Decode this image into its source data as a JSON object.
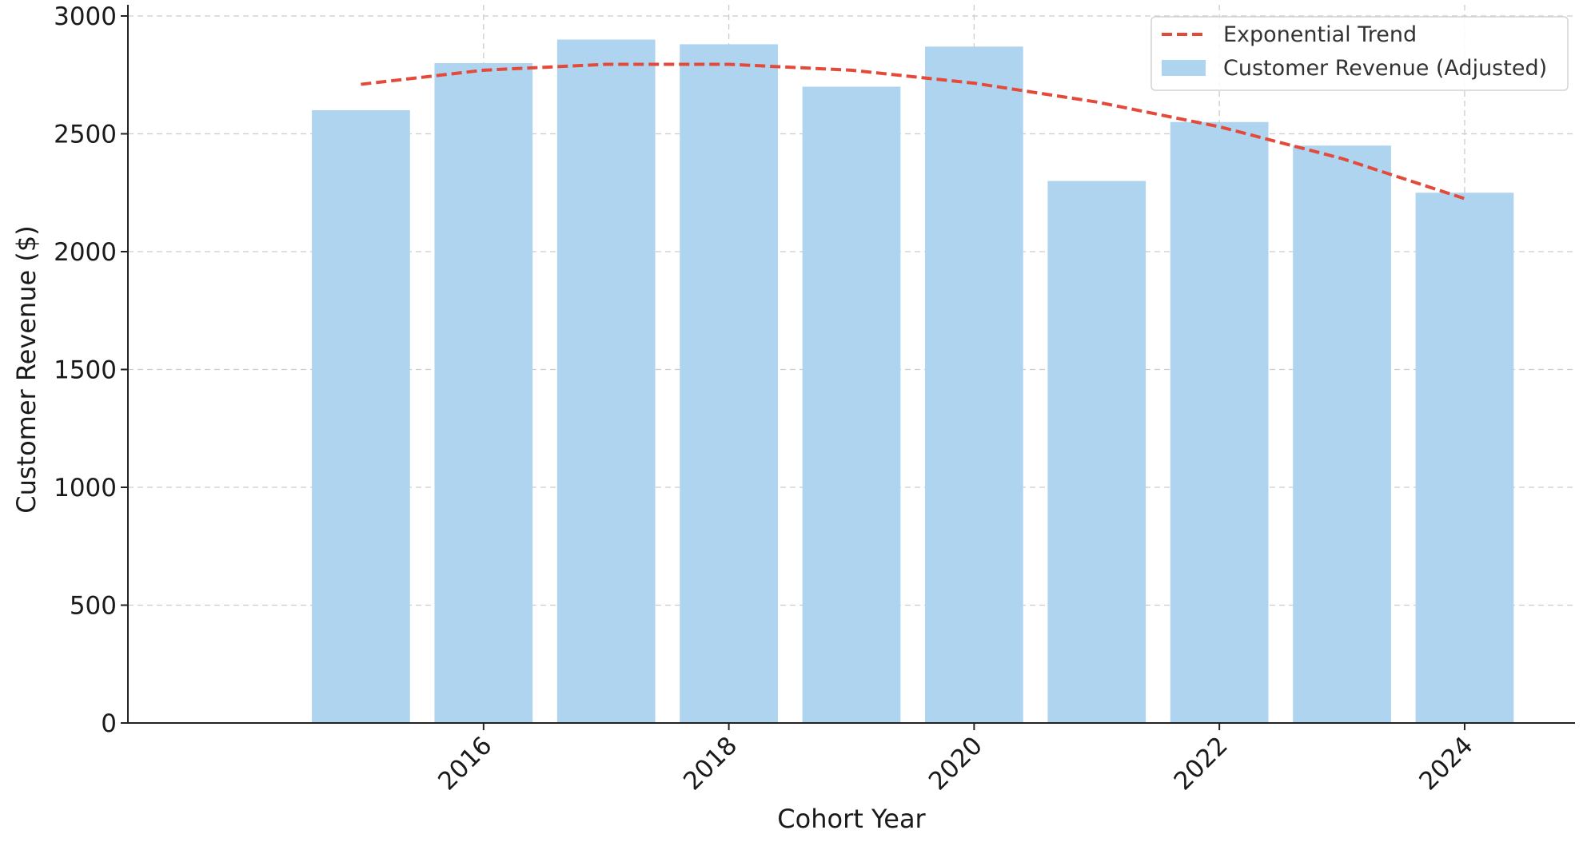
{
  "chart_data": {
    "type": "bar",
    "title": "",
    "xlabel": "Cohort Year",
    "ylabel": "Customer Revenue ($)",
    "x": [
      2015,
      2016,
      2017,
      2018,
      2019,
      2020,
      2021,
      2022,
      2023,
      2024
    ],
    "xlim": [
      2013.1,
      2024.9
    ],
    "ylim": [
      0,
      3000
    ],
    "x_ticks": [
      "2016",
      "2018",
      "2020",
      "2022",
      "2024"
    ],
    "y_ticks": [
      "0",
      "500",
      "1000",
      "1500",
      "2000",
      "2500",
      "3000"
    ],
    "grid": true,
    "legend_position": "top-right",
    "series": [
      {
        "name": "Customer Revenue (Adjusted)",
        "type": "bar",
        "color": "#aed4ef",
        "values": [
          2600,
          2800,
          2900,
          2880,
          2700,
          2870,
          2300,
          2550,
          2450,
          2250
        ]
      },
      {
        "name": "Exponential Trend",
        "type": "line",
        "style": "dashed",
        "color": "#e34a3a",
        "values": [
          2710,
          2770,
          2795,
          2795,
          2770,
          2715,
          2635,
          2530,
          2395,
          2225
        ]
      }
    ]
  }
}
